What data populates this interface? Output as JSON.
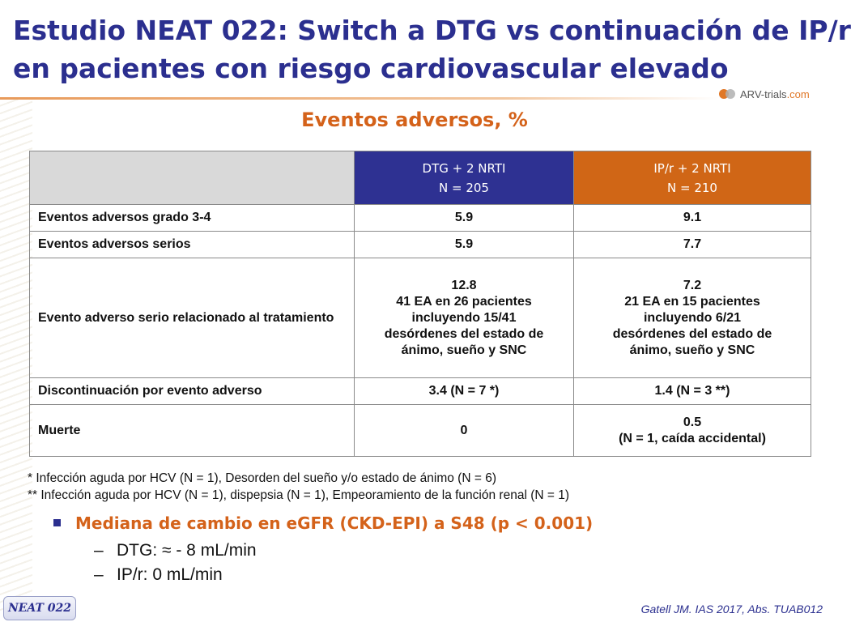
{
  "title": {
    "line1": "Estudio NEAT 022: Switch a DTG vs continuación de IP/r",
    "line2": "en pacientes con riesgo cardiovascular elevado"
  },
  "logo": {
    "text_main": "ARV-trials",
    "text_suffix": ".com"
  },
  "subtitle": "Eventos adversos, %",
  "table": {
    "columns": [
      {
        "line1": "DTG + 2 NRTI",
        "line2": "N = 205",
        "color": "#2e3192"
      },
      {
        "line1": "IP/r + 2 NRTI",
        "line2": "N = 210",
        "color": "#d06616"
      }
    ],
    "rows": [
      {
        "label": "Eventos adversos grado 3-4",
        "dtg": [
          "5.9"
        ],
        "ipr": [
          "9.1"
        ]
      },
      {
        "label": "Eventos adversos serios",
        "dtg": [
          "5.9"
        ],
        "ipr": [
          "7.7"
        ]
      },
      {
        "label": "Evento adverso serio relacionado al tratamiento",
        "dtg": [
          "12.8",
          "41 EA en 26 pacientes",
          "incluyendo 15/41",
          "desórdenes del estado de",
          "ánimo, sueño y SNC"
        ],
        "ipr": [
          "7.2",
          "21 EA en 15 pacientes",
          "incluyendo  6/21",
          "desórdenes del estado de",
          "ánimo, sueño y SNC"
        ]
      },
      {
        "label": "Discontinuación por evento adverso",
        "dtg": [
          "3.4 (N = 7 *)"
        ],
        "ipr": [
          "1.4 (N = 3 **)"
        ]
      },
      {
        "label": "Muerte",
        "dtg": [
          "0"
        ],
        "ipr": [
          "0.5",
          "(N = 1, caída accidental)"
        ]
      }
    ]
  },
  "footnotes": [
    "* Infección aguda por HCV (N = 1), Desorden del sueño y/o estado de ánimo (N = 6)",
    "** Infección aguda por HCV (N = 1), dispepsia (N = 1), Empeoramiento de la función renal (N = 1)"
  ],
  "bullet": {
    "text": "Mediana de cambio en eGFR (CKD-EPI) a S48 (p < 0.001)",
    "items": [
      "DTG: ≈ - 8 mL/min",
      "IP/r: 0 mL/min"
    ]
  },
  "study_tag": "NEAT 022",
  "citation": "Gatell JM. IAS 2017, Abs. TUAB012",
  "colors": {
    "title": "#2b2f8f",
    "accent": "#d4621a"
  }
}
